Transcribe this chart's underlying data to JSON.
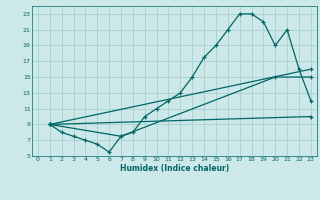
{
  "xlabel": "Humidex (Indice chaleur)",
  "bg_color": "#cce8e8",
  "grid_color": "#aad0d0",
  "line_color": "#006666",
  "xlim": [
    -0.5,
    23.5
  ],
  "ylim": [
    5,
    24
  ],
  "xticks": [
    0,
    1,
    2,
    3,
    4,
    5,
    6,
    7,
    8,
    9,
    10,
    11,
    12,
    13,
    14,
    15,
    16,
    17,
    18,
    19,
    20,
    21,
    22,
    23
  ],
  "yticks": [
    5,
    7,
    9,
    11,
    13,
    15,
    17,
    19,
    21,
    23
  ],
  "line1_x": [
    1,
    2,
    3,
    4,
    5,
    6,
    7,
    8,
    9,
    10,
    11,
    12,
    13,
    14,
    15,
    16,
    17,
    18,
    19,
    20,
    21,
    22,
    23
  ],
  "line1_y": [
    9,
    8,
    7.5,
    7,
    6.5,
    5.5,
    7.5,
    8,
    10,
    11,
    12,
    13,
    15,
    17.5,
    19,
    21,
    23,
    23,
    22,
    19,
    21,
    16,
    12
  ],
  "line2_x": [
    1,
    23
  ],
  "line2_y": [
    9,
    10
  ],
  "line3_x": [
    1,
    23
  ],
  "line3_y": [
    9,
    16
  ],
  "line4_x": [
    1,
    7,
    20,
    23
  ],
  "line4_y": [
    9,
    7.5,
    15,
    15
  ]
}
